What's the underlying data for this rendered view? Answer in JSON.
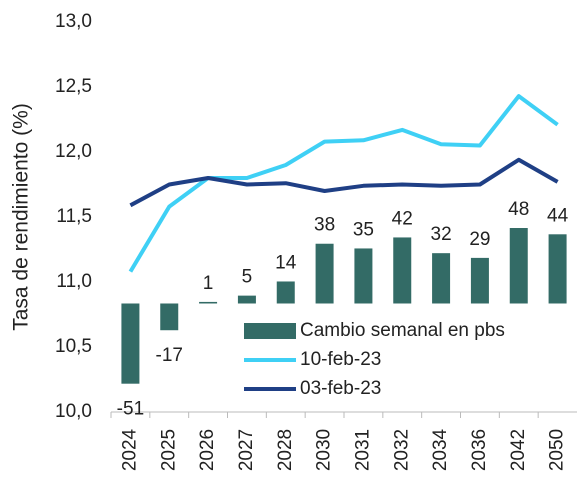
{
  "chart_data": {
    "type": "bar-line",
    "y_label": "Tasa de rendimiento (%)",
    "categories": [
      "2024",
      "2025",
      "2026",
      "2027",
      "2028",
      "2030",
      "2031",
      "2032",
      "2034",
      "2036",
      "2042",
      "2050"
    ],
    "series": [
      {
        "name": "Cambio semanal en pbs",
        "type": "bar",
        "axis": "y2",
        "color": "#336b66",
        "values": [
          -51,
          -17,
          1,
          5,
          14,
          38,
          35,
          42,
          32,
          29,
          48,
          44
        ]
      },
      {
        "name": "10-feb-23",
        "type": "line",
        "color": "#3fd0f5",
        "values": [
          11.08,
          11.58,
          11.8,
          11.8,
          11.9,
          12.08,
          12.09,
          12.17,
          12.06,
          12.05,
          12.43,
          12.21
        ]
      },
      {
        "name": "03-feb-23",
        "type": "line",
        "color": "#1f3f85",
        "values": [
          11.59,
          11.75,
          11.8,
          11.75,
          11.76,
          11.7,
          11.74,
          11.75,
          11.74,
          11.75,
          11.94,
          11.77
        ]
      }
    ],
    "ylim": [
      10,
      13
    ],
    "yticks": [
      {
        "value": 10,
        "label": "10,0"
      },
      {
        "value": 10.5,
        "label": "10,5"
      },
      {
        "value": 11,
        "label": "11,0"
      },
      {
        "value": 11.5,
        "label": "11,5"
      },
      {
        "value": 12,
        "label": "12,0"
      },
      {
        "value": 12.5,
        "label": "12,5"
      },
      {
        "value": 13,
        "label": "13,0"
      }
    ],
    "y2lim": [
      -69,
      179
    ],
    "grid": false,
    "legend": "inside"
  }
}
